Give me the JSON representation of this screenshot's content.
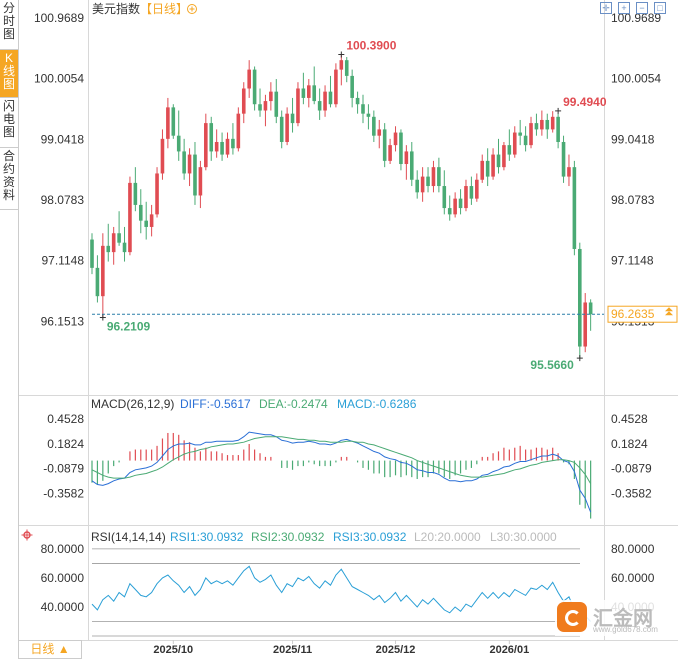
{
  "side_tabs": [
    "分时图",
    "K线图",
    "闪电图",
    "合约资料"
  ],
  "active_tab_index": 1,
  "header": {
    "title": "美元指数",
    "period": "【日线】",
    "period_toggle_icon": "circle-plus-icon"
  },
  "toolbar_icons": [
    "crosshair-icon",
    "zoom-in-icon",
    "zoom-out-icon",
    "fullscreen-icon"
  ],
  "bottom_tab": {
    "label": "日线",
    "arrow": "▲"
  },
  "watermark": {
    "text": "汇金网",
    "url": "www.gold678.com"
  },
  "colors": {
    "up": "#e04c52",
    "down": "#4aaa74",
    "diff": "#2a6fd6",
    "dea": "#4aaa74",
    "rsi": "#2a9fd6",
    "accent": "#f5a623",
    "last_line": "#2a7fa8"
  },
  "chart_data": [
    {
      "type": "candlestick",
      "title": "美元指数【日线】",
      "ylim": [
        95.25,
        100.97
      ],
      "y_ticks": [
        "100.9689",
        "100.0054",
        "99.0418",
        "98.0783",
        "97.1148",
        "96.1513"
      ],
      "x_ticks": [
        {
          "label": "2025/10",
          "index": 15
        },
        {
          "label": "2025/11",
          "index": 37
        },
        {
          "label": "2025/12",
          "index": 56
        },
        {
          "label": "2026/01",
          "index": 77
        }
      ],
      "annotations": [
        {
          "label": "100.3900",
          "index": 46,
          "value": 100.39,
          "color": "#e04c52"
        },
        {
          "label": "99.4940",
          "index": 86,
          "value": 99.494,
          "color": "#e04c52"
        },
        {
          "label": "96.2109",
          "index": 2,
          "value": 96.2109,
          "color": "#4aaa74"
        },
        {
          "label": "95.5660",
          "index": 90,
          "value": 95.566,
          "color": "#4aaa74"
        }
      ],
      "last_price": "96.2635",
      "last_value": 96.2635,
      "ohlc": [
        [
          97.45,
          97.55,
          96.9,
          97.0
        ],
        [
          97.0,
          97.2,
          96.45,
          96.55
        ],
        [
          96.55,
          97.55,
          96.21,
          97.35
        ],
        [
          97.35,
          97.7,
          97.1,
          97.25
        ],
        [
          97.25,
          97.65,
          97.05,
          97.55
        ],
        [
          97.55,
          97.9,
          97.35,
          97.4
        ],
        [
          97.4,
          97.65,
          97.1,
          97.25
        ],
        [
          97.25,
          98.45,
          97.2,
          98.35
        ],
        [
          98.35,
          98.6,
          97.9,
          98.0
        ],
        [
          98.0,
          98.25,
          97.55,
          97.75
        ],
        [
          97.75,
          98.05,
          97.45,
          97.65
        ],
        [
          97.65,
          98.0,
          97.5,
          97.85
        ],
        [
          97.85,
          98.6,
          97.8,
          98.5
        ],
        [
          98.5,
          99.2,
          98.4,
          99.05
        ],
        [
          99.05,
          99.7,
          98.9,
          99.55
        ],
        [
          99.55,
          99.6,
          99.05,
          99.1
        ],
        [
          99.1,
          99.5,
          98.7,
          98.85
        ],
        [
          98.85,
          99.05,
          98.4,
          98.5
        ],
        [
          98.5,
          98.9,
          98.3,
          98.8
        ],
        [
          98.8,
          99.0,
          98.0,
          98.15
        ],
        [
          98.15,
          98.7,
          97.95,
          98.6
        ],
        [
          98.6,
          99.45,
          98.55,
          99.3
        ],
        [
          99.3,
          99.4,
          98.7,
          98.85
        ],
        [
          98.85,
          99.2,
          98.75,
          99.0
        ],
        [
          99.0,
          99.15,
          98.7,
          98.8
        ],
        [
          98.8,
          99.15,
          98.75,
          99.05
        ],
        [
          99.05,
          99.3,
          98.8,
          98.9
        ],
        [
          98.9,
          99.55,
          98.85,
          99.45
        ],
        [
          99.45,
          99.95,
          99.3,
          99.85
        ],
        [
          99.85,
          100.3,
          99.7,
          100.15
        ],
        [
          100.15,
          100.2,
          99.5,
          99.6
        ],
        [
          99.6,
          99.85,
          99.4,
          99.5
        ],
        [
          99.5,
          99.75,
          99.25,
          99.65
        ],
        [
          99.65,
          99.95,
          99.5,
          99.8
        ],
        [
          99.8,
          100.0,
          99.3,
          99.4
        ],
        [
          99.4,
          99.5,
          98.9,
          99.0
        ],
        [
          99.0,
          99.55,
          98.95,
          99.45
        ],
        [
          99.45,
          99.7,
          99.15,
          99.3
        ],
        [
          99.3,
          99.95,
          99.25,
          99.85
        ],
        [
          99.85,
          100.1,
          99.6,
          99.7
        ],
        [
          99.7,
          100.0,
          99.55,
          99.9
        ],
        [
          99.9,
          100.2,
          99.6,
          99.65
        ],
        [
          99.65,
          99.85,
          99.35,
          99.5
        ],
        [
          99.5,
          99.9,
          99.4,
          99.8
        ],
        [
          99.8,
          100.05,
          99.55,
          99.6
        ],
        [
          99.6,
          100.25,
          99.55,
          100.15
        ],
        [
          100.15,
          100.39,
          99.9,
          100.3
        ],
        [
          100.3,
          100.35,
          99.95,
          100.05
        ],
        [
          100.05,
          100.15,
          99.55,
          99.7
        ],
        [
          99.7,
          99.8,
          99.45,
          99.6
        ],
        [
          99.6,
          99.75,
          99.3,
          99.45
        ],
        [
          99.45,
          99.6,
          99.2,
          99.4
        ],
        [
          99.4,
          99.5,
          99.0,
          99.1
        ],
        [
          99.1,
          99.35,
          98.9,
          99.2
        ],
        [
          99.2,
          99.3,
          98.6,
          98.7
        ],
        [
          98.7,
          99.05,
          98.65,
          98.95
        ],
        [
          98.95,
          99.25,
          98.85,
          99.15
        ],
        [
          99.15,
          99.2,
          98.55,
          98.65
        ],
        [
          98.65,
          98.95,
          98.4,
          98.85
        ],
        [
          98.85,
          99.0,
          98.3,
          98.4
        ],
        [
          98.4,
          98.55,
          98.1,
          98.2
        ],
        [
          98.2,
          98.6,
          98.05,
          98.45
        ],
        [
          98.45,
          98.6,
          98.2,
          98.3
        ],
        [
          98.3,
          98.7,
          98.2,
          98.6
        ],
        [
          98.6,
          98.75,
          98.2,
          98.3
        ],
        [
          98.3,
          98.55,
          97.85,
          97.95
        ],
        [
          97.95,
          98.15,
          97.75,
          97.85
        ],
        [
          97.85,
          98.2,
          97.8,
          98.1
        ],
        [
          98.1,
          98.25,
          97.85,
          97.95
        ],
        [
          97.95,
          98.4,
          97.9,
          98.3
        ],
        [
          98.3,
          98.45,
          98.0,
          98.1
        ],
        [
          98.1,
          98.5,
          98.05,
          98.4
        ],
        [
          98.4,
          98.8,
          98.35,
          98.7
        ],
        [
          98.7,
          98.9,
          98.3,
          98.45
        ],
        [
          98.45,
          98.9,
          98.4,
          98.8
        ],
        [
          98.8,
          99.05,
          98.5,
          98.6
        ],
        [
          98.6,
          99.0,
          98.55,
          98.95
        ],
        [
          98.95,
          99.2,
          98.7,
          98.8
        ],
        [
          98.8,
          99.25,
          98.75,
          99.15
        ],
        [
          99.15,
          99.35,
          98.95,
          99.1
        ],
        [
          99.1,
          99.25,
          98.85,
          98.95
        ],
        [
          98.95,
          99.4,
          98.9,
          99.3
        ],
        [
          99.3,
          99.45,
          99.1,
          99.2
        ],
        [
          99.2,
          99.5,
          99.1,
          99.35
        ],
        [
          99.35,
          99.45,
          99.05,
          99.2
        ],
        [
          99.2,
          99.49,
          99.15,
          99.4
        ],
        [
          99.4,
          99.45,
          98.9,
          99.0
        ],
        [
          99.0,
          99.1,
          98.35,
          98.45
        ],
        [
          98.45,
          98.8,
          98.3,
          98.6
        ],
        [
          98.6,
          98.7,
          97.2,
          97.3
        ],
        [
          97.3,
          97.4,
          95.57,
          95.75
        ],
        [
          95.75,
          96.6,
          95.66,
          96.45
        ],
        [
          96.45,
          96.5,
          96.0,
          96.2635
        ]
      ]
    },
    {
      "type": "line",
      "title": "MACD(26,12,9)",
      "labels": {
        "diff": "DIFF:-0.5617",
        "dea": "DEA:-0.2474",
        "macd": "MACD:-0.6286"
      },
      "ylim": [
        -0.7,
        0.68
      ],
      "y_ticks": [
        "0.4528",
        "0.1824",
        "-0.0879",
        "-0.3582"
      ],
      "y_tick_values": [
        0.4528,
        0.1824,
        -0.0879,
        -0.3582
      ],
      "diff": [
        -0.22,
        -0.26,
        -0.27,
        -0.25,
        -0.22,
        -0.2,
        -0.19,
        -0.13,
        -0.1,
        -0.09,
        -0.08,
        -0.06,
        -0.02,
        0.05,
        0.12,
        0.16,
        0.18,
        0.18,
        0.19,
        0.17,
        0.17,
        0.2,
        0.2,
        0.21,
        0.21,
        0.21,
        0.21,
        0.22,
        0.26,
        0.31,
        0.3,
        0.29,
        0.28,
        0.28,
        0.26,
        0.22,
        0.21,
        0.19,
        0.2,
        0.2,
        0.21,
        0.2,
        0.18,
        0.18,
        0.17,
        0.19,
        0.22,
        0.23,
        0.21,
        0.19,
        0.16,
        0.13,
        0.1,
        0.08,
        0.04,
        0.02,
        0.01,
        -0.02,
        -0.03,
        -0.06,
        -0.1,
        -0.11,
        -0.13,
        -0.13,
        -0.15,
        -0.19,
        -0.22,
        -0.22,
        -0.23,
        -0.22,
        -0.22,
        -0.2,
        -0.16,
        -0.15,
        -0.12,
        -0.1,
        -0.07,
        -0.06,
        -0.03,
        -0.01,
        -0.01,
        0.01,
        0.03,
        0.05,
        0.05,
        0.07,
        0.05,
        0.0,
        -0.02,
        -0.12,
        -0.32,
        -0.41,
        -0.56
      ],
      "dea": [
        -0.1,
        -0.13,
        -0.16,
        -0.18,
        -0.19,
        -0.19,
        -0.19,
        -0.18,
        -0.16,
        -0.15,
        -0.14,
        -0.12,
        -0.1,
        -0.07,
        -0.03,
        0.01,
        0.04,
        0.07,
        0.09,
        0.1,
        0.12,
        0.13,
        0.15,
        0.16,
        0.17,
        0.18,
        0.18,
        0.19,
        0.2,
        0.22,
        0.24,
        0.25,
        0.26,
        0.26,
        0.26,
        0.26,
        0.25,
        0.24,
        0.23,
        0.23,
        0.22,
        0.22,
        0.21,
        0.21,
        0.2,
        0.2,
        0.2,
        0.21,
        0.21,
        0.2,
        0.2,
        0.18,
        0.17,
        0.15,
        0.13,
        0.11,
        0.09,
        0.07,
        0.05,
        0.03,
        0.0,
        -0.02,
        -0.04,
        -0.06,
        -0.08,
        -0.1,
        -0.12,
        -0.14,
        -0.16,
        -0.17,
        -0.18,
        -0.18,
        -0.18,
        -0.17,
        -0.16,
        -0.15,
        -0.14,
        -0.12,
        -0.1,
        -0.09,
        -0.07,
        -0.05,
        -0.04,
        -0.02,
        -0.01,
        0.0,
        0.01,
        0.01,
        0.0,
        -0.02,
        -0.08,
        -0.15,
        -0.25
      ],
      "macd": [
        -0.24,
        -0.26,
        -0.22,
        -0.14,
        -0.06,
        -0.02,
        0.0,
        0.1,
        0.12,
        0.12,
        0.12,
        0.12,
        0.16,
        0.24,
        0.3,
        0.3,
        0.28,
        0.22,
        0.2,
        0.14,
        0.1,
        0.14,
        0.1,
        0.1,
        0.08,
        0.06,
        0.06,
        0.06,
        0.12,
        0.18,
        0.12,
        0.08,
        0.04,
        0.04,
        0.0,
        -0.08,
        -0.08,
        -0.1,
        -0.06,
        -0.06,
        -0.02,
        -0.04,
        -0.06,
        -0.06,
        -0.06,
        -0.02,
        0.04,
        0.04,
        0.0,
        -0.02,
        -0.08,
        -0.1,
        -0.14,
        -0.14,
        -0.18,
        -0.18,
        -0.16,
        -0.18,
        -0.16,
        -0.18,
        -0.2,
        -0.18,
        -0.18,
        -0.14,
        -0.14,
        -0.18,
        -0.2,
        -0.16,
        -0.14,
        -0.1,
        -0.08,
        -0.04,
        0.04,
        0.04,
        0.08,
        0.1,
        0.14,
        0.12,
        0.14,
        0.16,
        0.12,
        0.12,
        0.14,
        0.14,
        0.12,
        0.14,
        0.08,
        -0.02,
        -0.04,
        -0.2,
        -0.48,
        -0.52,
        -0.63
      ]
    },
    {
      "type": "line",
      "title": "RSI(14,14,14)",
      "labels": {
        "rsi1": "RSI1:30.0932",
        "rsi2": "RSI2:30.0932",
        "rsi3": "RSI3:30.0932",
        "l20": "L20:20.0000",
        "l30": "L30:30.0000"
      },
      "ylim": [
        20,
        82
      ],
      "y_ticks": [
        "80.0000",
        "60.0000",
        "40.0000"
      ],
      "y_tick_values": [
        80,
        60,
        40
      ],
      "h_lines": [
        80,
        70,
        30,
        20
      ],
      "rsi": [
        42,
        38,
        45,
        48,
        44,
        50,
        47,
        56,
        52,
        48,
        47,
        50,
        56,
        60,
        62,
        58,
        55,
        50,
        54,
        48,
        52,
        60,
        56,
        58,
        56,
        58,
        55,
        60,
        65,
        68,
        60,
        57,
        59,
        62,
        55,
        50,
        56,
        54,
        60,
        58,
        61,
        56,
        53,
        58,
        55,
        62,
        66,
        60,
        54,
        52,
        50,
        48,
        45,
        48,
        43,
        46,
        50,
        44,
        48,
        44,
        40,
        45,
        42,
        46,
        42,
        38,
        36,
        40,
        37,
        42,
        40,
        45,
        50,
        46,
        50,
        46,
        50,
        47,
        52,
        50,
        48,
        53,
        52,
        55,
        52,
        57,
        50,
        44,
        47,
        38,
        28,
        34,
        30
      ]
    },
    {
      "type": "axis",
      "x_ticks": [
        "2025/10",
        "2025/11",
        "2025/12",
        "2026/01"
      ]
    }
  ]
}
